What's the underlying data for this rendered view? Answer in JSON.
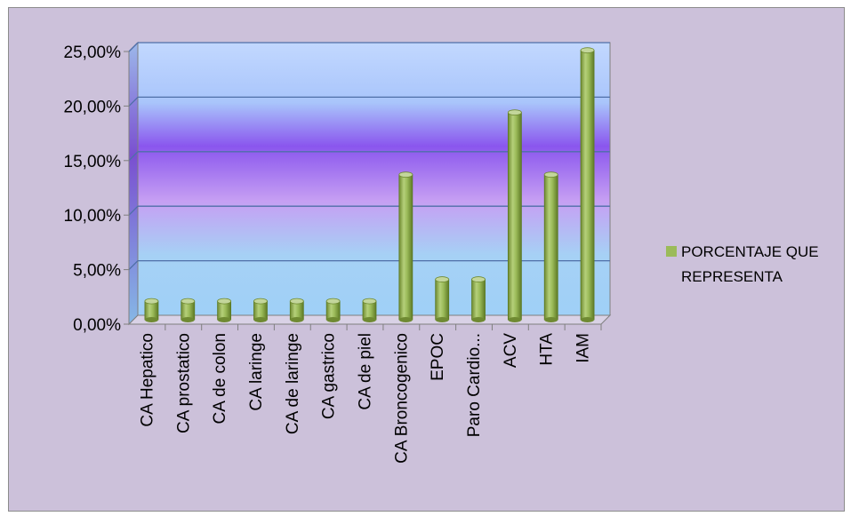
{
  "chart_data": {
    "type": "bar",
    "categories": [
      "CA Hepatico",
      "CA prostatico",
      "CA de colon",
      "CA laringe",
      "CA de laringe",
      "CA gastrico",
      "CA de piel",
      "CA Broncogenico",
      "EPOC",
      "Paro Cardio...",
      "ACV",
      "HTA",
      "IAM"
    ],
    "series": [
      {
        "name": "PORCENTAJE QUE REPRESENTA",
        "values": [
          1.7,
          1.7,
          1.7,
          1.7,
          1.7,
          1.7,
          1.7,
          13.3,
          3.7,
          3.7,
          19.0,
          13.3,
          24.7
        ]
      }
    ],
    "ytick_labels": [
      "0,00%",
      "5,00%",
      "10,00%",
      "15,00%",
      "20,00%",
      "25,00%"
    ],
    "ylim": [
      0,
      25
    ],
    "grid": true,
    "legend_position": "right",
    "colors": {
      "bar": "#9bbb59",
      "bar_light": "#c3d69b",
      "bar_dark": "#76923c",
      "chart_background": "#ccc1da",
      "gridline": "#4f6fa8"
    }
  }
}
